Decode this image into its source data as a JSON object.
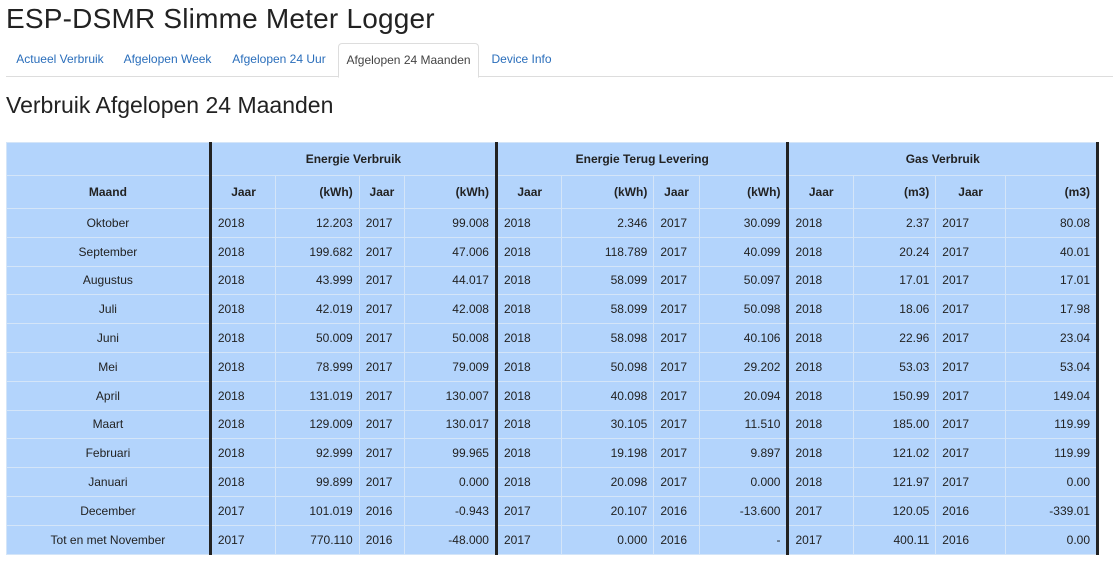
{
  "app": {
    "title": "ESP-DSMR Slimme Meter Logger"
  },
  "tabs": [
    {
      "label": "Actueel Verbruik",
      "active": false
    },
    {
      "label": "Afgelopen Week",
      "active": false
    },
    {
      "label": "Afgelopen 24 Uur",
      "active": false
    },
    {
      "label": "Afgelopen 24 Maanden",
      "active": true
    },
    {
      "label": "Device Info",
      "active": false
    }
  ],
  "section": {
    "title": "Verbruik Afgelopen 24 Maanden"
  },
  "table": {
    "groups": {
      "energy": "Energie Verbruik",
      "return": "Energie Terug Levering",
      "gas": "Gas Verbruik"
    },
    "headers": {
      "month": "Maand",
      "year": "Jaar",
      "kwh": "(kWh)",
      "m3": "(m3)"
    },
    "rows": [
      [
        "Oktober",
        "2018",
        "12.203",
        "2017",
        "99.008",
        "2018",
        "2.346",
        "2017",
        "30.099",
        "2018",
        "2.37",
        "2017",
        "80.08"
      ],
      [
        "September",
        "2018",
        "199.682",
        "2017",
        "47.006",
        "2018",
        "118.789",
        "2017",
        "40.099",
        "2018",
        "20.24",
        "2017",
        "40.01"
      ],
      [
        "Augustus",
        "2018",
        "43.999",
        "2017",
        "44.017",
        "2018",
        "58.099",
        "2017",
        "50.097",
        "2018",
        "17.01",
        "2017",
        "17.01"
      ],
      [
        "Juli",
        "2018",
        "42.019",
        "2017",
        "42.008",
        "2018",
        "58.099",
        "2017",
        "50.098",
        "2018",
        "18.06",
        "2017",
        "17.98"
      ],
      [
        "Juni",
        "2018",
        "50.009",
        "2017",
        "50.008",
        "2018",
        "58.098",
        "2017",
        "40.106",
        "2018",
        "22.96",
        "2017",
        "23.04"
      ],
      [
        "Mei",
        "2018",
        "78.999",
        "2017",
        "79.009",
        "2018",
        "50.098",
        "2017",
        "29.202",
        "2018",
        "53.03",
        "2017",
        "53.04"
      ],
      [
        "April",
        "2018",
        "131.019",
        "2017",
        "130.007",
        "2018",
        "40.098",
        "2017",
        "20.094",
        "2018",
        "150.99",
        "2017",
        "149.04"
      ],
      [
        "Maart",
        "2018",
        "129.009",
        "2017",
        "130.017",
        "2018",
        "30.105",
        "2017",
        "11.510",
        "2018",
        "185.00",
        "2017",
        "119.99"
      ],
      [
        "Februari",
        "2018",
        "92.999",
        "2017",
        "99.965",
        "2018",
        "19.198",
        "2017",
        "9.897",
        "2018",
        "121.02",
        "2017",
        "119.99"
      ],
      [
        "Januari",
        "2018",
        "99.899",
        "2017",
        "0.000",
        "2018",
        "20.098",
        "2017",
        "0.000",
        "2018",
        "121.97",
        "2017",
        "0.00"
      ],
      [
        "December",
        "2017",
        "101.019",
        "2016",
        "-0.943",
        "2017",
        "20.107",
        "2016",
        "-13.600",
        "2017",
        "120.05",
        "2016",
        "-339.01"
      ],
      [
        "Tot en met November",
        "2017",
        "770.110",
        "2016",
        "-48.000",
        "2017",
        "0.000",
        "2016",
        "-",
        "2017",
        "400.11",
        "2016",
        "0.00"
      ]
    ]
  }
}
